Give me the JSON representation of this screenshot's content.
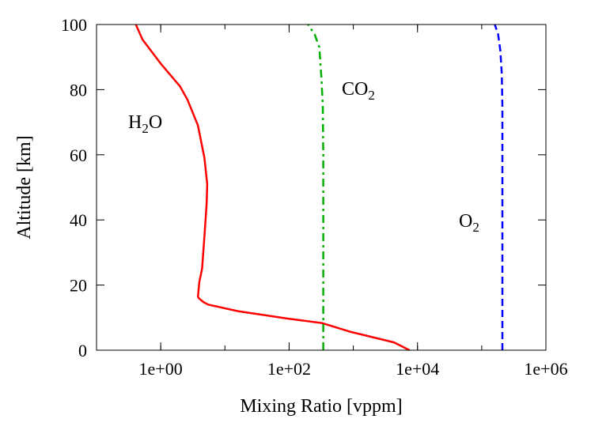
{
  "chart_data": {
    "type": "line",
    "title": "",
    "xlabel": "Mixing Ratio [vppm]",
    "ylabel": "Altitude [km]",
    "xscale": "log",
    "xlim": [
      0.1,
      1000000
    ],
    "ylim": [
      0,
      100
    ],
    "xticks": [
      1,
      100,
      10000,
      1000000
    ],
    "xtick_labels": [
      "1e+00",
      "1e+02",
      "1e+04",
      "1e+06"
    ],
    "yticks": [
      0,
      20,
      40,
      60,
      80,
      100
    ],
    "ytick_labels": [
      "0",
      "20",
      "40",
      "60",
      "80",
      "100"
    ],
    "grid": false,
    "legend": "none",
    "series": [
      {
        "name": "H2O",
        "label_main": "H",
        "label_sub": "2",
        "label_tail": "O",
        "color": "#ff0000",
        "dash": "solid",
        "x": [
          7500,
          4300,
          920,
          330,
          95,
          16,
          5.5,
          4.6,
          3.9,
          3.8,
          4.0,
          4.4,
          4.8,
          5.2,
          5.3,
          4.8,
          3.8,
          2.6,
          2.0,
          1.0,
          0.52,
          0.41
        ],
        "y": [
          0,
          2.4,
          5.6,
          8.3,
          9.7,
          12,
          14,
          14.8,
          16,
          16.5,
          21,
          25,
          35,
          45,
          51,
          59,
          69,
          77,
          81,
          88,
          95.4,
          100
        ]
      },
      {
        "name": "CO2",
        "label_main": "CO",
        "label_sub": "2",
        "label_tail": "",
        "color": "#00b000",
        "dash": "dashdot",
        "x": [
          340,
          340,
          335,
          320,
          295,
          250,
          197
        ],
        "y": [
          0,
          60,
          75,
          83,
          93,
          97,
          100
        ]
      },
      {
        "name": "O2",
        "label_main": "O",
        "label_sub": "2",
        "label_tail": "",
        "color": "#0000ff",
        "dash": "dashed",
        "x": [
          210000,
          210000,
          205000,
          195000,
          180000,
          160000
        ],
        "y": [
          0,
          75,
          85,
          92,
          97,
          100
        ]
      }
    ]
  }
}
